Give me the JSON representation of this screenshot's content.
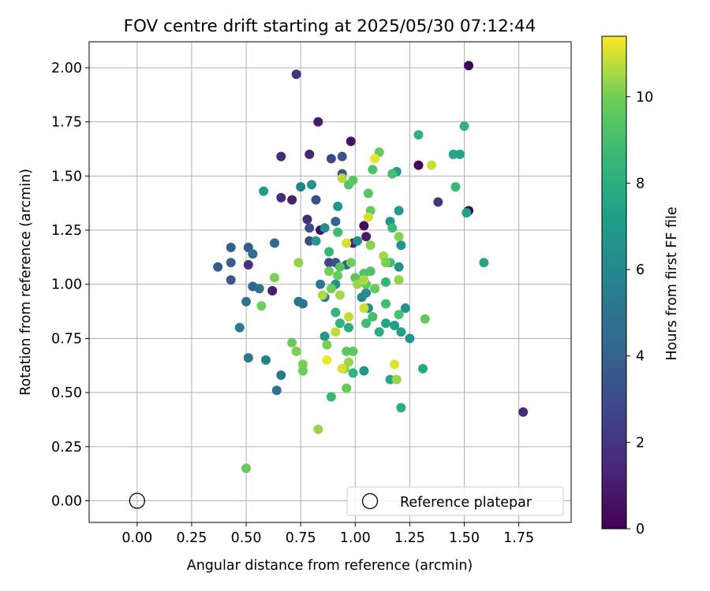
{
  "chart_data": {
    "type": "scatter",
    "title": "FOV centre drift starting at 2025/05/30 07:12:44",
    "xlabel": "Angular distance from reference (arcmin)",
    "ylabel": "Rotation from reference (arcmin)",
    "xlim": [
      -0.22,
      1.99
    ],
    "ylim": [
      -0.1,
      2.12
    ],
    "xticks": [
      "0.00",
      "0.25",
      "0.50",
      "0.75",
      "1.00",
      "1.25",
      "1.50",
      "1.75"
    ],
    "yticks": [
      "0.00",
      "0.25",
      "0.50",
      "0.75",
      "1.00",
      "1.25",
      "1.50",
      "1.75",
      "2.00"
    ],
    "grid": true,
    "legend": {
      "position": "lower-right",
      "entries": [
        "Reference platepar"
      ]
    },
    "colorbar": {
      "label": "Hours from first FF file",
      "min": 0,
      "max": 11.4,
      "ticks": [
        "0",
        "2",
        "4",
        "6",
        "8",
        "10"
      ],
      "colormap": "viridis"
    },
    "reference_point": {
      "x": 0.0,
      "y": 0.0,
      "name": "Reference platepar"
    },
    "series": [
      {
        "points": [
          [
            1.52,
            2.01,
            0.1
          ],
          [
            0.73,
            1.97,
            1.9
          ],
          [
            0.83,
            1.75,
            1.0
          ],
          [
            0.98,
            1.66,
            0.6
          ],
          [
            1.29,
            1.55,
            0.2
          ],
          [
            1.52,
            1.34,
            0.3
          ],
          [
            0.66,
            1.59,
            1.6
          ],
          [
            0.79,
            1.6,
            1.3
          ],
          [
            0.94,
            1.59,
            3.3
          ],
          [
            0.89,
            1.58,
            2.8
          ],
          [
            0.94,
            1.51,
            3.5
          ],
          [
            0.66,
            1.4,
            1.7
          ],
          [
            0.71,
            1.39,
            1.2
          ],
          [
            0.82,
            1.39,
            3.0
          ],
          [
            1.38,
            1.38,
            2.0
          ],
          [
            1.77,
            0.41,
            1.5
          ],
          [
            0.78,
            1.3,
            1.6
          ],
          [
            0.84,
            1.25,
            0.6
          ],
          [
            0.79,
            1.26,
            3.1
          ],
          [
            0.91,
            1.29,
            4.2
          ],
          [
            0.79,
            1.2,
            2.9
          ],
          [
            1.05,
            1.22,
            0.9
          ],
          [
            1.04,
            1.27,
            0.4
          ],
          [
            0.99,
            1.19,
            1.2
          ],
          [
            0.88,
            1.1,
            2.8
          ],
          [
            0.91,
            1.1,
            3.2
          ],
          [
            0.96,
            1.09,
            3.9
          ],
          [
            0.62,
            0.97,
            1.1
          ],
          [
            0.51,
            1.09,
            1.8
          ],
          [
            0.37,
            1.08,
            3.6
          ],
          [
            0.43,
            1.17,
            3.9
          ],
          [
            0.51,
            1.17,
            3.6
          ],
          [
            0.53,
            1.14,
            4.6
          ],
          [
            0.63,
            1.19,
            4.4
          ],
          [
            0.43,
            1.1,
            3.8
          ],
          [
            0.43,
            1.02,
            3.5
          ],
          [
            0.53,
            0.99,
            4.2
          ],
          [
            0.56,
            0.98,
            4.7
          ],
          [
            0.5,
            0.92,
            5.0
          ],
          [
            0.74,
            0.92,
            4.7
          ],
          [
            0.76,
            0.91,
            5.0
          ],
          [
            0.47,
            0.8,
            5.3
          ],
          [
            0.51,
            0.66,
            5.1
          ],
          [
            0.59,
            0.65,
            5.6
          ],
          [
            0.66,
            0.58,
            5.1
          ],
          [
            0.64,
            0.51,
            5.0
          ],
          [
            0.86,
            0.94,
            5.4
          ],
          [
            0.84,
            1.0,
            5.3
          ],
          [
            0.75,
            1.45,
            5.8
          ],
          [
            0.8,
            1.46,
            6.6
          ],
          [
            0.58,
            1.43,
            7.0
          ],
          [
            0.86,
            1.26,
            6.2
          ],
          [
            0.82,
            1.2,
            7.0
          ],
          [
            0.92,
            1.36,
            6.7
          ],
          [
            0.91,
            1.0,
            6.5
          ],
          [
            1.01,
            1.2,
            6.3
          ],
          [
            1.03,
            0.94,
            6.0
          ],
          [
            1.05,
            0.96,
            6.5
          ],
          [
            1.06,
            0.89,
            6.1
          ],
          [
            0.86,
            0.76,
            6.8
          ],
          [
            1.04,
            0.6,
            6.8
          ],
          [
            1.19,
            1.52,
            7.2
          ],
          [
            1.2,
            1.34,
            7.0
          ],
          [
            1.16,
            1.29,
            6.7
          ],
          [
            1.21,
            1.18,
            6.6
          ],
          [
            1.2,
            1.08,
            6.4
          ],
          [
            1.23,
            0.89,
            6.6
          ],
          [
            1.25,
            0.75,
            6.6
          ],
          [
            1.21,
            0.78,
            7.3
          ],
          [
            1.18,
            0.81,
            7.1
          ],
          [
            1.14,
            0.82,
            7.5
          ],
          [
            1.16,
            0.56,
            7.6
          ],
          [
            1.21,
            0.43,
            8.0
          ],
          [
            1.45,
            1.6,
            7.5
          ],
          [
            1.48,
            1.6,
            7.3
          ],
          [
            1.51,
            1.33,
            7.4
          ],
          [
            1.59,
            1.1,
            7.6
          ],
          [
            1.29,
            1.69,
            8.2
          ],
          [
            1.5,
            1.73,
            8.3
          ],
          [
            1.46,
            1.45,
            8.6
          ],
          [
            1.31,
            0.61,
            7.8
          ],
          [
            1.11,
            0.78,
            8.0
          ],
          [
            0.97,
            0.8,
            7.9
          ],
          [
            0.93,
            0.82,
            8.2
          ],
          [
            0.91,
            0.87,
            8.4
          ],
          [
            0.89,
            0.48,
            8.6
          ],
          [
            0.99,
            0.59,
            8.4
          ],
          [
            1.17,
            1.26,
            8.7
          ],
          [
            1.16,
            1.1,
            8.9
          ],
          [
            1.14,
            1.01,
            8.5
          ],
          [
            1.14,
            0.91,
            8.8
          ],
          [
            1.2,
            0.86,
            9.1
          ],
          [
            1.08,
            0.85,
            9.0
          ],
          [
            1.05,
            0.82,
            8.8
          ],
          [
            0.88,
            1.15,
            8.5
          ],
          [
            0.92,
            1.24,
            8.8
          ],
          [
            0.97,
            1.46,
            9.3
          ],
          [
            0.99,
            1.48,
            9.5
          ],
          [
            1.08,
            1.53,
            9.2
          ],
          [
            1.17,
            1.51,
            9.0
          ],
          [
            1.06,
            1.42,
            9.4
          ],
          [
            1.07,
            1.34,
            9.6
          ],
          [
            1.11,
            1.61,
            9.7
          ],
          [
            1.04,
            1.05,
            9.3
          ],
          [
            1.05,
            1.0,
            9.6
          ],
          [
            1.07,
            1.06,
            9.2
          ],
          [
            1.09,
            0.98,
            9.7
          ],
          [
            1.0,
            1.03,
            9.5
          ],
          [
            0.93,
            1.08,
            9.4
          ],
          [
            0.92,
            1.04,
            9.8
          ],
          [
            0.88,
            1.06,
            10.0
          ],
          [
            0.98,
            1.1,
            9.9
          ],
          [
            0.99,
            0.69,
            9.6
          ],
          [
            0.96,
            0.69,
            9.5
          ],
          [
            0.95,
            0.61,
            10.1
          ],
          [
            0.96,
            0.52,
            9.8
          ],
          [
            0.97,
            0.64,
            10.4
          ],
          [
            1.32,
            0.84,
            9.7
          ],
          [
            1.2,
            1.22,
            10.2
          ],
          [
            1.2,
            1.02,
            10.3
          ],
          [
            1.19,
            0.56,
            10.4
          ],
          [
            1.13,
            1.13,
            10.5
          ],
          [
            1.14,
            1.1,
            10.1
          ],
          [
            0.71,
            0.73,
            9.8
          ],
          [
            0.73,
            0.69,
            10.1
          ],
          [
            0.76,
            0.63,
            10.1
          ],
          [
            0.76,
            0.6,
            9.9
          ],
          [
            0.83,
            0.33,
            10.4
          ],
          [
            0.5,
            0.15,
            9.7
          ],
          [
            0.57,
            0.9,
            10.0
          ],
          [
            0.63,
            1.03,
            10.1
          ],
          [
            0.74,
            1.1,
            10.3
          ],
          [
            0.89,
            0.98,
            9.9
          ],
          [
            0.87,
            0.72,
            10.1
          ],
          [
            0.93,
            0.95,
            10.5
          ],
          [
            0.97,
            0.85,
            10.8
          ],
          [
            1.01,
            1.0,
            10.4
          ],
          [
            1.04,
            1.02,
            10.6
          ],
          [
            1.07,
            1.18,
            10.2
          ],
          [
            1.06,
            1.31,
            11.0
          ],
          [
            1.09,
            1.58,
            11.2
          ],
          [
            1.35,
            1.55,
            10.9
          ],
          [
            1.04,
            0.89,
            10.9
          ],
          [
            0.96,
            1.19,
            11.0
          ],
          [
            0.85,
            0.95,
            10.6
          ],
          [
            0.91,
            0.78,
            10.8
          ],
          [
            0.87,
            0.65,
            11.3
          ],
          [
            0.94,
            0.61,
            11.0
          ],
          [
            1.18,
            0.63,
            11.1
          ],
          [
            0.94,
            1.49,
            10.7
          ]
        ]
      }
    ]
  }
}
